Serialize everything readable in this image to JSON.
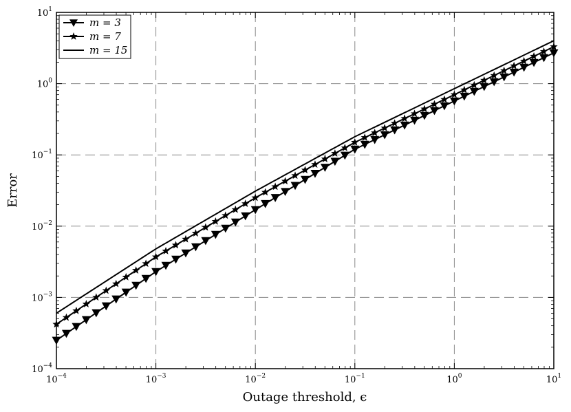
{
  "chart_data": {
    "type": "line",
    "title": "",
    "xlabel": "Outage threshold, ϵ",
    "ylabel": "Error",
    "xscale": "log",
    "yscale": "log",
    "xlim": [
      0.0001,
      10
    ],
    "ylim": [
      0.0001,
      10
    ],
    "grid": true,
    "legend_position": "top-left",
    "x_ticks": [
      {
        "base": "10",
        "exp": "−4"
      },
      {
        "base": "10",
        "exp": "−3"
      },
      {
        "base": "10",
        "exp": "−2"
      },
      {
        "base": "10",
        "exp": "−1"
      },
      {
        "base": "10",
        "exp": "0"
      },
      {
        "base": "10",
        "exp": "1"
      }
    ],
    "y_ticks": [
      {
        "base": "10",
        "exp": "−4"
      },
      {
        "base": "10",
        "exp": "−3"
      },
      {
        "base": "10",
        "exp": "−2"
      },
      {
        "base": "10",
        "exp": "−1"
      },
      {
        "base": "10",
        "exp": "0"
      },
      {
        "base": "10",
        "exp": "1"
      }
    ],
    "series": [
      {
        "name": "m = 3",
        "marker": "triangle-down",
        "color": "#000000",
        "x": [
          0.0001,
          0.001,
          0.01,
          0.1,
          1,
          10
        ],
        "y": [
          0.00025,
          0.0023,
          0.017,
          0.12,
          0.57,
          2.7
        ]
      },
      {
        "name": "m = 7",
        "marker": "star",
        "color": "#000000",
        "x": [
          0.0001,
          0.001,
          0.01,
          0.1,
          1,
          10
        ],
        "y": [
          0.00042,
          0.0037,
          0.025,
          0.15,
          0.7,
          3.3
        ]
      },
      {
        "name": "m = 15",
        "marker": "none",
        "color": "#000000",
        "x": [
          0.0001,
          0.001,
          0.01,
          0.1,
          1,
          10
        ],
        "y": [
          0.0006,
          0.0048,
          0.031,
          0.18,
          0.85,
          4.0
        ]
      }
    ]
  }
}
